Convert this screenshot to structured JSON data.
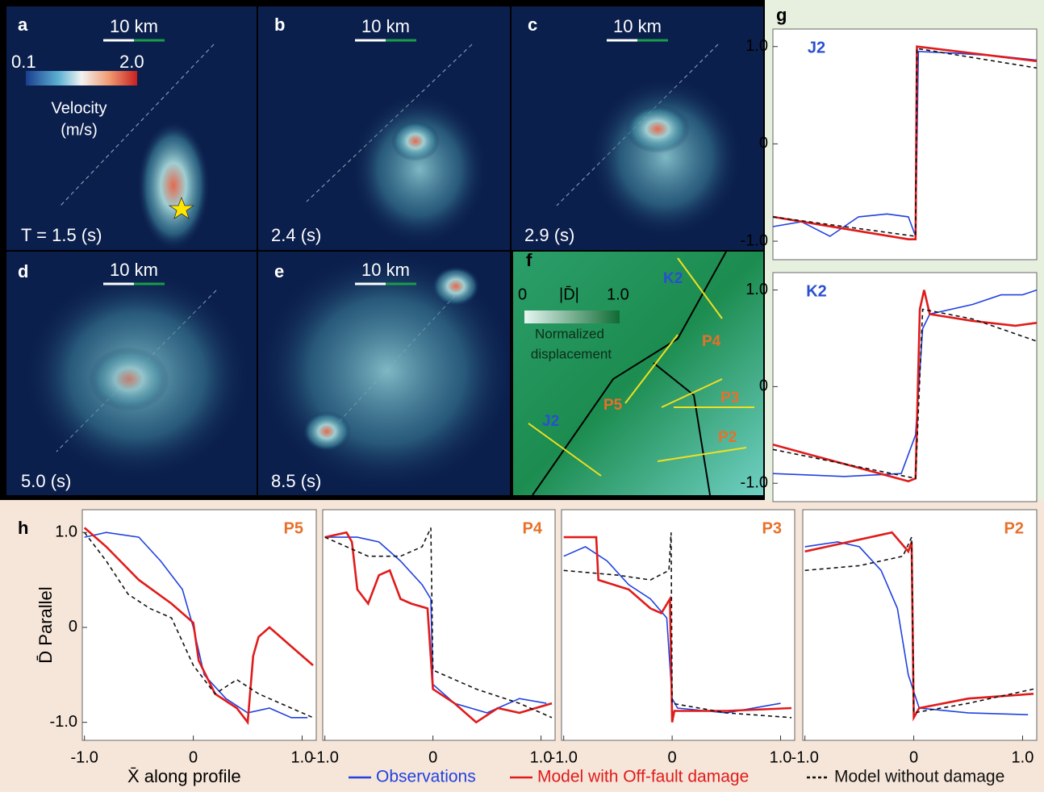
{
  "panels": [
    {
      "letter": "a",
      "scale": "10 km",
      "time": "T = 1.5 (s)"
    },
    {
      "letter": "b",
      "scale": "10 km",
      "time": "2.4 (s)"
    },
    {
      "letter": "c",
      "scale": "10 km",
      "time": "2.9 (s)"
    },
    {
      "letter": "d",
      "scale": "10 km",
      "time": "5.0 (s)"
    },
    {
      "letter": "e",
      "scale": "10 km",
      "time": "8.5 (s)"
    }
  ],
  "colorbar": {
    "min": "0.1",
    "max": "2.0",
    "label_1": "Velocity",
    "label_2": "(m/s)"
  },
  "panel_f": {
    "letter": "f",
    "min": "0",
    "symbol": "|D̄|",
    "max": "1.0",
    "label_1": "Normalized",
    "label_2": "displacement",
    "profiles": [
      "K2",
      "P4",
      "P3",
      "P5",
      "J2",
      "P2"
    ]
  },
  "panel_g": {
    "letter": "g"
  },
  "panel_h": {
    "letter": "h"
  },
  "legend": [
    {
      "name": "Observations",
      "color": "#2142e0",
      "style": "solid"
    },
    {
      "name": "Model with Off-fault damage",
      "color": "#e01b1b",
      "style": "solid"
    },
    {
      "name": "Model without damage",
      "color": "#111111",
      "style": "dashed"
    }
  ],
  "chart_data": [
    {
      "type": "line",
      "title": "J2",
      "title_color": "#2a4fd0",
      "xlim": [
        -1.0,
        0.85
      ],
      "ylim": [
        -1.19,
        1.18
      ],
      "yticks": [
        {
          "value": 1,
          "label": "1.0"
        },
        0,
        {
          "value": -1,
          "label": "-1.0"
        }
      ],
      "xticks": [],
      "series": [
        {
          "color": "#2142e0",
          "style": "solid",
          "x": [
            -1,
            -0.8,
            -0.6,
            -0.4,
            -0.2,
            -0.05,
            0,
            0.02,
            0.3,
            0.6,
            0.85
          ],
          "values": [
            -0.85,
            -0.8,
            -0.95,
            -0.75,
            -0.72,
            -0.75,
            -0.95,
            0.95,
            0.93,
            0.9,
            0.86
          ]
        },
        {
          "color": "#e01b1b",
          "style": "solid",
          "x": [
            -1,
            -0.05,
            0,
            0.01,
            0.85
          ],
          "values": [
            -0.75,
            -0.98,
            -0.98,
            1.0,
            0.85
          ]
        },
        {
          "color": "#111111",
          "style": "dashed",
          "x": [
            -1,
            0,
            0.01,
            0.85
          ],
          "values": [
            -0.75,
            -0.95,
            0.98,
            0.78
          ]
        }
      ]
    },
    {
      "type": "line",
      "title": "K2",
      "title_color": "#2a4fd0",
      "xlim": [
        -1.0,
        0.85
      ],
      "ylim": [
        -1.19,
        1.18
      ],
      "yticks": [
        {
          "value": 1,
          "label": "1.0"
        },
        0,
        {
          "value": -1,
          "label": "-1.0"
        }
      ],
      "xticks": [],
      "series": [
        {
          "color": "#2142e0",
          "style": "solid",
          "x": [
            -1,
            -0.5,
            -0.1,
            0,
            0.05,
            0.1,
            0.4,
            0.6,
            0.75,
            0.85
          ],
          "values": [
            -0.9,
            -0.93,
            -0.9,
            -0.5,
            0.6,
            0.75,
            0.85,
            0.95,
            0.95,
            1.0
          ]
        },
        {
          "color": "#e01b1b",
          "style": "solid",
          "x": [
            -1,
            -0.05,
            0,
            0.03,
            0.06,
            0.1,
            0.4,
            0.7,
            0.85
          ],
          "values": [
            -0.6,
            -0.98,
            -0.95,
            0.8,
            1.0,
            0.75,
            0.68,
            0.63,
            0.66
          ]
        },
        {
          "color": "#111111",
          "style": "dashed",
          "x": [
            -1,
            0,
            0.05,
            0.4,
            0.85
          ],
          "values": [
            -0.65,
            -0.95,
            0.8,
            0.7,
            0.47
          ]
        }
      ]
    },
    {
      "type": "line",
      "title": "P5",
      "title_color": "#e8702a",
      "ylabel": "D̄ Parallel",
      "xlabel": "X̄ along profile",
      "xlim": [
        -1.02,
        1.13
      ],
      "ylim": [
        -1.19,
        1.24
      ],
      "yticks": [
        {
          "value": 1,
          "label": "1.0"
        },
        0,
        {
          "value": -1,
          "label": "-1.0"
        }
      ],
      "xticks": [
        {
          "value": -1,
          "label": "-1.0"
        },
        0,
        {
          "value": 1,
          "label": "1.0"
        }
      ],
      "series": [
        {
          "color": "#2142e0",
          "style": "solid",
          "x": [
            -1,
            -0.8,
            -0.5,
            -0.3,
            -0.1,
            0,
            0.1,
            0.3,
            0.5,
            0.7,
            0.9,
            1.05
          ],
          "values": [
            0.95,
            1.0,
            0.95,
            0.7,
            0.4,
            0,
            -0.5,
            -0.75,
            -0.9,
            -0.85,
            -0.95,
            -0.95
          ]
        },
        {
          "color": "#e01b1b",
          "style": "solid",
          "x": [
            -1,
            -0.8,
            -0.5,
            -0.2,
            0,
            0.05,
            0.2,
            0.4,
            0.5,
            0.55,
            0.6,
            0.7,
            0.9,
            1.1
          ],
          "values": [
            1.05,
            0.85,
            0.5,
            0.25,
            0.05,
            -0.35,
            -0.7,
            -0.85,
            -1.0,
            -0.3,
            -0.1,
            0,
            -0.2,
            -0.4
          ]
        },
        {
          "color": "#111111",
          "style": "dashed",
          "x": [
            -1,
            -0.8,
            -0.6,
            -0.4,
            -0.2,
            0,
            0.2,
            0.4,
            0.6,
            1.1
          ],
          "values": [
            1.0,
            0.7,
            0.35,
            0.2,
            0.1,
            -0.4,
            -0.7,
            -0.55,
            -0.7,
            -0.95
          ]
        }
      ]
    },
    {
      "type": "line",
      "title": "P4",
      "title_color": "#e8702a",
      "xlim": [
        -1.02,
        1.13
      ],
      "ylim": [
        -1.19,
        1.24
      ],
      "yticks": [],
      "xticks": [
        {
          "value": -1,
          "label": "-1.0"
        },
        0,
        {
          "value": 1,
          "label": "1.0"
        }
      ],
      "series": [
        {
          "color": "#2142e0",
          "style": "solid",
          "x": [
            -1,
            -0.7,
            -0.5,
            -0.3,
            -0.1,
            -0.02,
            0,
            0.2,
            0.5,
            0.8,
            1.05
          ],
          "values": [
            0.95,
            0.95,
            0.9,
            0.7,
            0.45,
            0.3,
            -0.6,
            -0.8,
            -0.9,
            -0.75,
            -0.8
          ]
        },
        {
          "color": "#e01b1b",
          "style": "solid",
          "x": [
            -1,
            -0.8,
            -0.75,
            -0.7,
            -0.6,
            -0.5,
            -0.4,
            -0.3,
            -0.2,
            -0.05,
            0,
            0.2,
            0.4,
            0.6,
            0.8,
            1.1
          ],
          "values": [
            0.95,
            1.0,
            0.9,
            0.4,
            0.25,
            0.55,
            0.6,
            0.3,
            0.25,
            0.2,
            -0.65,
            -0.8,
            -1.0,
            -0.85,
            -0.9,
            -0.8
          ]
        },
        {
          "color": "#111111",
          "style": "dashed",
          "x": [
            -1,
            -0.6,
            -0.3,
            -0.1,
            -0.02,
            0,
            0.4,
            0.8,
            1.1
          ],
          "values": [
            0.95,
            0.75,
            0.75,
            0.85,
            1.05,
            -0.45,
            -0.65,
            -0.8,
            -0.95
          ]
        }
      ]
    },
    {
      "type": "line",
      "title": "P3",
      "title_color": "#e8702a",
      "xlim": [
        -1.02,
        1.13
      ],
      "ylim": [
        -1.19,
        1.24
      ],
      "yticks": [],
      "xticks": [
        {
          "value": -1,
          "label": "-1.0"
        },
        0,
        {
          "value": 1,
          "label": "1.0"
        }
      ],
      "series": [
        {
          "color": "#2142e0",
          "style": "solid",
          "x": [
            -1,
            -0.8,
            -0.6,
            -0.4,
            -0.2,
            -0.05,
            0,
            0.05,
            0.5,
            1.0
          ],
          "values": [
            0.75,
            0.85,
            0.7,
            0.45,
            0.3,
            0.1,
            -0.75,
            -0.85,
            -0.9,
            -0.8
          ]
        },
        {
          "color": "#e01b1b",
          "style": "solid",
          "x": [
            -1,
            -0.7,
            -0.68,
            -0.4,
            -0.2,
            -0.1,
            -0.02,
            0,
            0.02,
            0.5,
            1.1
          ],
          "values": [
            0.95,
            0.95,
            0.5,
            0.4,
            0.2,
            0.15,
            0.3,
            -1.0,
            -0.88,
            -0.88,
            -0.85
          ]
        },
        {
          "color": "#111111",
          "style": "dashed",
          "x": [
            -1,
            -0.5,
            -0.2,
            -0.03,
            -0.01,
            0,
            0.5,
            1.1
          ],
          "values": [
            0.6,
            0.55,
            0.5,
            0.6,
            1.0,
            -0.8,
            -0.9,
            -0.95
          ]
        }
      ]
    },
    {
      "type": "line",
      "title": "P2",
      "title_color": "#e8702a",
      "xlim": [
        -1.02,
        1.13
      ],
      "ylim": [
        -1.19,
        1.24
      ],
      "yticks": [],
      "xticks": [
        {
          "value": -1,
          "label": "-1.0"
        },
        0,
        {
          "value": 1,
          "label": "1.0"
        }
      ],
      "series": [
        {
          "color": "#2142e0",
          "style": "solid",
          "x": [
            -1,
            -0.7,
            -0.5,
            -0.3,
            -0.15,
            -0.05,
            0.05,
            0.5,
            1.05
          ],
          "values": [
            0.85,
            0.9,
            0.85,
            0.6,
            0.2,
            -0.5,
            -0.85,
            -0.9,
            -0.92
          ]
        },
        {
          "color": "#e01b1b",
          "style": "solid",
          "x": [
            -1,
            -0.2,
            -0.05,
            -0.02,
            0,
            0.05,
            0.5,
            1.1
          ],
          "values": [
            0.8,
            1.0,
            0.8,
            0.9,
            -0.95,
            -0.85,
            -0.75,
            -0.7
          ]
        },
        {
          "color": "#111111",
          "style": "dashed",
          "x": [
            -1,
            -0.5,
            -0.1,
            -0.02,
            0,
            0.5,
            1.1
          ],
          "values": [
            0.6,
            0.65,
            0.75,
            0.95,
            -0.9,
            -0.8,
            -0.65
          ]
        }
      ]
    }
  ]
}
